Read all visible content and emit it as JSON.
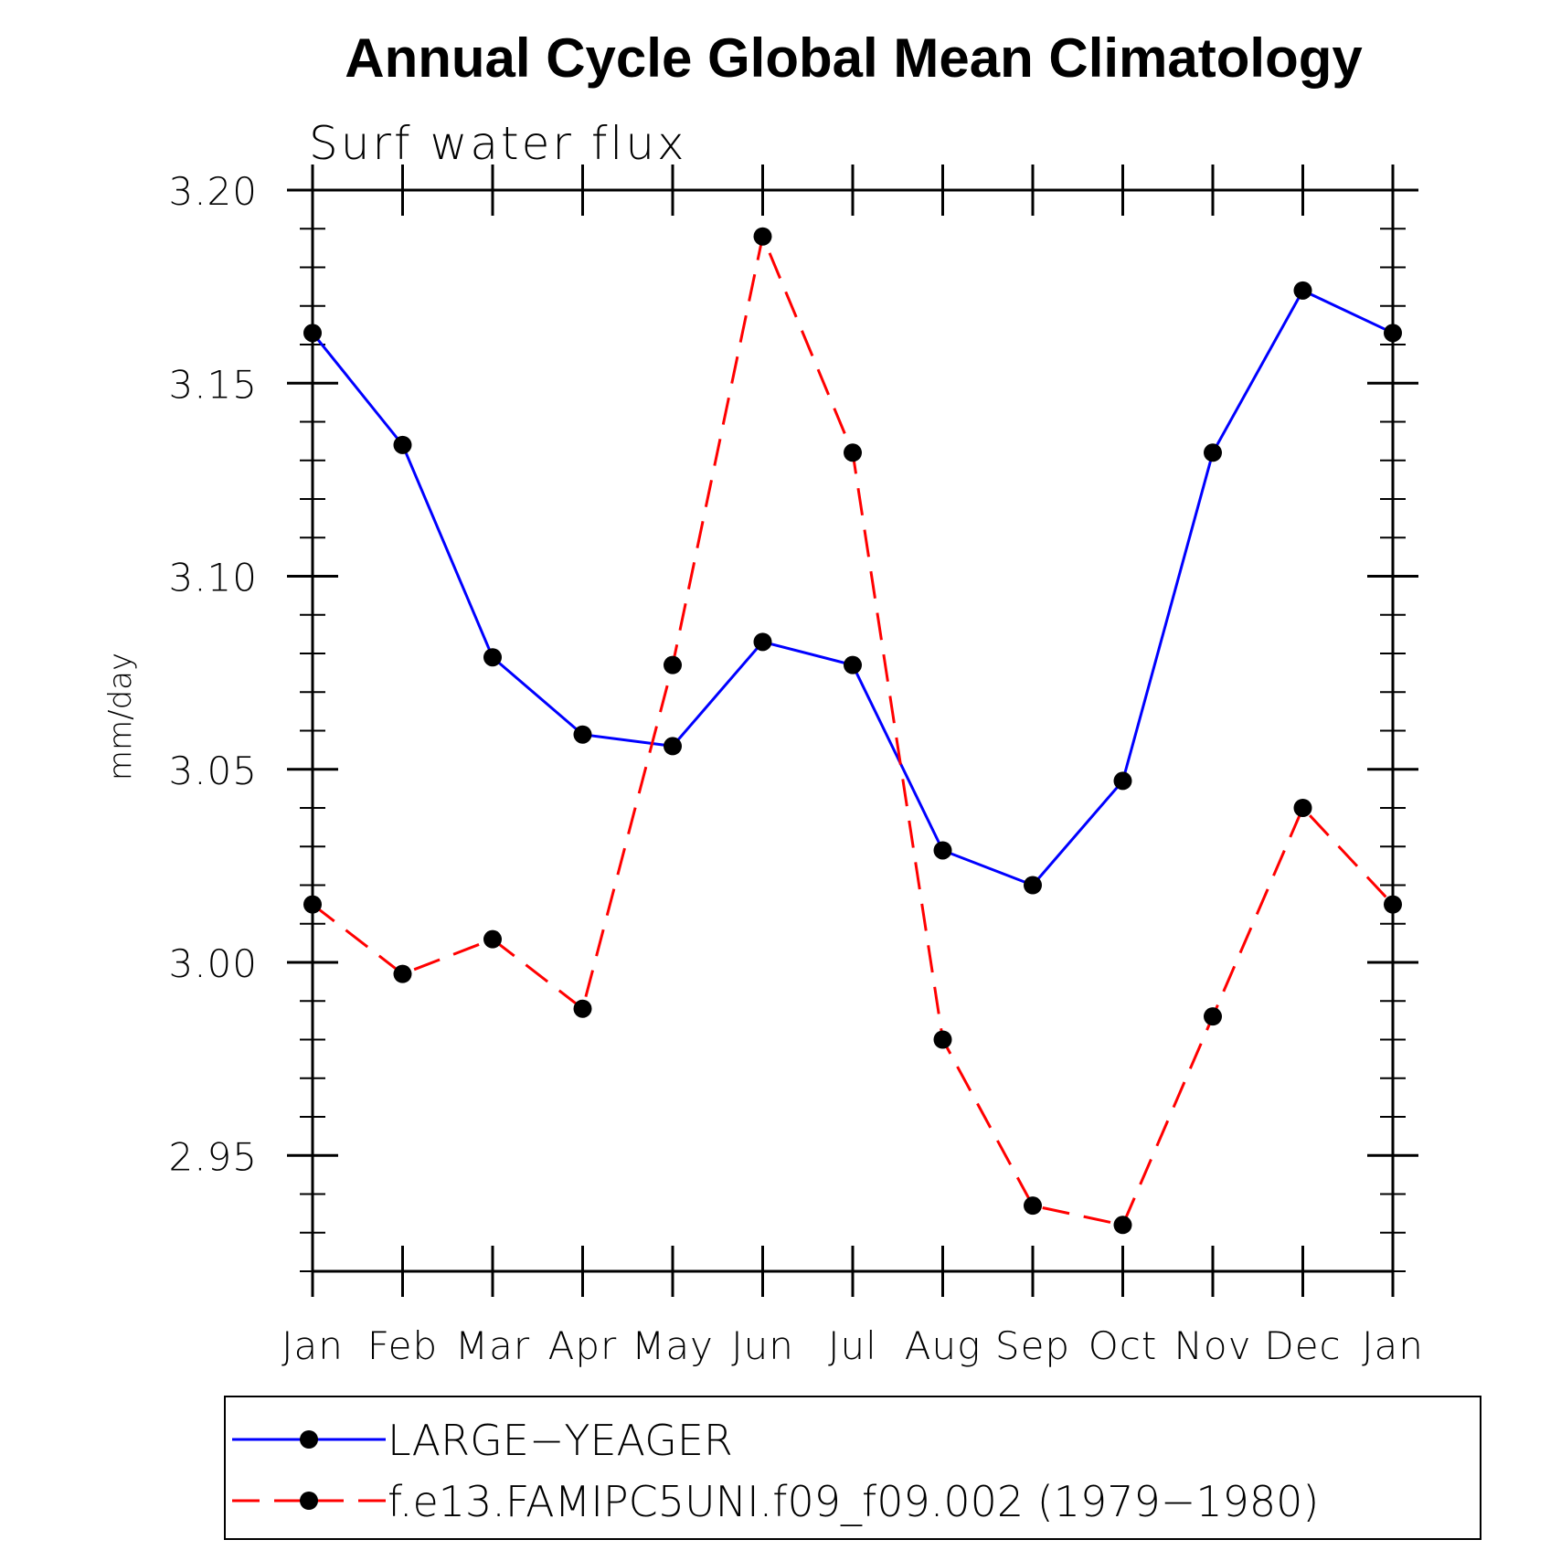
{
  "chart_data": {
    "type": "line",
    "title": "Annual Cycle Global Mean Climatology",
    "subtitle": "Surf water flux",
    "xlabel": "",
    "ylabel": "mm/day",
    "categories": [
      "Jan",
      "Feb",
      "Mar",
      "Apr",
      "May",
      "Jun",
      "Jul",
      "Aug",
      "Sep",
      "Oct",
      "Nov",
      "Dec",
      "Jan"
    ],
    "ylim": [
      2.92,
      3.2
    ],
    "yticks": [
      2.95,
      3.0,
      3.05,
      3.1,
      3.15,
      3.2
    ],
    "ytick_labels": [
      "2.95",
      "3.00",
      "3.05",
      "3.10",
      "3.15",
      "3.20"
    ],
    "grid": false,
    "legend_position": "bottom",
    "series": [
      {
        "name": "LARGE−YEAGER",
        "color": "#0000ff",
        "dash": "solid",
        "values": [
          3.163,
          3.134,
          3.079,
          3.059,
          3.056,
          3.083,
          3.077,
          3.029,
          3.02,
          3.047,
          3.132,
          3.174,
          3.163
        ]
      },
      {
        "name": "f.e13.FAMIPC5UNI.f09_f09.002 (1979−1980)",
        "color": "#ff0000",
        "dash": "dashed",
        "values": [
          3.015,
          2.997,
          3.006,
          2.988,
          3.077,
          3.188,
          3.132,
          2.98,
          2.937,
          2.932,
          2.986,
          3.04,
          3.015
        ]
      }
    ]
  }
}
